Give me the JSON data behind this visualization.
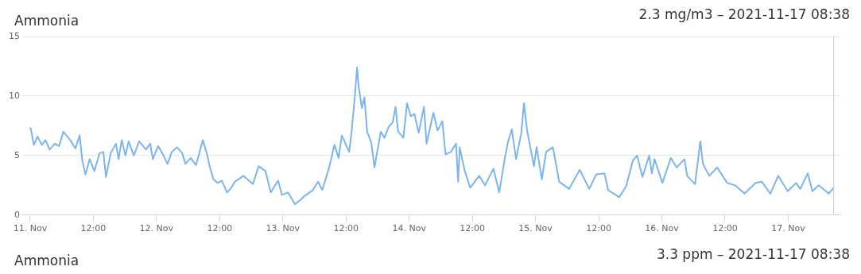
{
  "chart_data": [
    {
      "type": "line",
      "title": "Ammonia",
      "subtitle": "2.3 mg/m3 – 2021-11-17 08:38",
      "x": [
        "2021-11-11T00:00",
        "2021-11-11T00:06",
        "2021-11-11T00:42",
        "2021-11-11T01:24",
        "2021-11-11T02:12",
        "2021-11-11T02:54",
        "2021-11-11T03:42",
        "2021-11-11T04:42",
        "2021-11-11T05:30",
        "2021-11-11T06:18",
        "2021-11-11T07:36",
        "2021-11-11T08:36",
        "2021-11-11T09:24",
        "2021-11-11T09:54",
        "2021-11-11T10:30",
        "2021-11-11T11:18",
        "2021-11-11T12:12",
        "2021-11-11T13:12",
        "2021-11-11T13:54",
        "2021-11-11T14:24",
        "2021-11-11T15:18",
        "2021-11-11T16:18",
        "2021-11-11T16:48",
        "2021-11-11T17:24",
        "2021-11-11T18:06",
        "2021-11-11T18:42",
        "2021-11-11T19:42",
        "2021-11-11T20:42",
        "2021-11-11T22:00",
        "2021-11-11T22:48",
        "2021-11-11T23:18",
        "2021-11-12T00:18",
        "2021-11-12T01:06",
        "2021-11-12T02:06",
        "2021-11-12T02:54",
        "2021-11-12T03:54",
        "2021-11-12T04:54",
        "2021-11-12T05:30",
        "2021-11-12T06:30",
        "2021-11-12T07:30",
        "2021-11-12T08:00",
        "2021-11-12T08:48",
        "2021-11-12T09:36",
        "2021-11-12T10:06",
        "2021-11-12T10:48",
        "2021-11-12T11:36",
        "2021-11-12T12:24",
        "2021-11-12T13:24",
        "2021-11-12T14:12",
        "2021-11-12T14:54",
        "2021-11-12T16:30",
        "2021-11-12T18:18",
        "2021-11-12T19:24",
        "2021-11-12T20:42",
        "2021-11-12T21:42",
        "2021-11-12T23:06",
        "2021-11-12T23:48",
        "2021-11-13T01:00",
        "2021-11-13T02:18",
        "2021-11-13T03:24",
        "2021-11-13T04:06",
        "2021-11-13T05:42",
        "2021-11-13T06:42",
        "2021-11-13T07:30",
        "2021-11-13T08:48",
        "2021-11-13T09:48",
        "2021-11-13T10:36",
        "2021-11-13T11:12",
        "2021-11-13T12:36",
        "2021-11-13T13:06",
        "2021-11-13T13:42",
        "2021-11-13T14:06",
        "2021-11-13T14:24",
        "2021-11-13T15:00",
        "2021-11-13T15:30",
        "2021-11-13T16:00",
        "2021-11-13T16:48",
        "2021-11-13T17:24",
        "2021-11-13T18:36",
        "2021-11-13T19:18",
        "2021-11-13T20:06",
        "2021-11-13T20:54",
        "2021-11-13T21:24",
        "2021-11-13T21:54",
        "2021-11-13T22:54",
        "2021-11-13T23:36",
        "2021-11-14T00:18",
        "2021-11-14T01:00",
        "2021-11-14T01:48",
        "2021-11-14T02:48",
        "2021-11-14T03:18",
        "2021-11-14T04:36",
        "2021-11-14T05:24",
        "2021-11-14T06:18",
        "2021-11-14T06:54",
        "2021-11-14T07:54",
        "2021-11-14T08:54",
        "2021-11-14T09:18",
        "2021-11-14T09:36",
        "2021-11-14T10:30",
        "2021-11-14T11:36",
        "2021-11-14T13:18",
        "2021-11-14T14:24",
        "2021-11-14T16:00",
        "2021-11-14T17:06",
        "2021-11-14T18:18",
        "2021-11-14T18:48",
        "2021-11-14T19:30",
        "2021-11-14T20:18",
        "2021-11-14T21:18",
        "2021-11-14T21:48",
        "2021-11-14T22:24",
        "2021-11-14T23:42",
        "2021-11-15T00:12",
        "2021-11-15T01:12",
        "2021-11-15T02:00",
        "2021-11-15T03:18",
        "2021-11-15T04:30",
        "2021-11-15T06:24",
        "2021-11-15T08:24",
        "2021-11-15T10:12",
        "2021-11-15T11:30",
        "2021-11-15T13:06",
        "2021-11-15T13:48",
        "2021-11-15T15:54",
        "2021-11-15T17:12",
        "2021-11-15T18:30",
        "2021-11-15T19:18",
        "2021-11-15T20:18",
        "2021-11-15T21:36",
        "2021-11-15T22:06",
        "2021-11-15T22:36",
        "2021-11-16T00:06",
        "2021-11-16T01:42",
        "2021-11-16T02:48",
        "2021-11-16T04:18",
        "2021-11-16T04:48",
        "2021-11-16T06:18",
        "2021-11-16T07:18",
        "2021-11-16T07:48",
        "2021-11-16T09:00",
        "2021-11-16T10:30",
        "2021-11-16T12:24",
        "2021-11-16T13:54",
        "2021-11-16T15:42",
        "2021-11-16T17:48",
        "2021-11-16T19:00",
        "2021-11-16T20:36",
        "2021-11-16T22:06",
        "2021-11-16T23:54",
        "2021-11-17T01:30",
        "2021-11-17T02:18",
        "2021-11-17T03:42",
        "2021-11-17T04:36",
        "2021-11-17T05:48",
        "2021-11-17T07:42",
        "2021-11-17T08:38"
      ],
      "series": [
        {
          "color": "#7cb5ec",
          "values": [
            7.2,
            7.3,
            5.9,
            6.6,
            5.9,
            6.3,
            5.5,
            6.0,
            5.8,
            7.0,
            6.3,
            5.6,
            6.7,
            4.6,
            3.4,
            4.7,
            3.7,
            5.2,
            5.3,
            3.2,
            5.2,
            6.0,
            4.7,
            6.3,
            5.0,
            6.2,
            5.0,
            6.2,
            5.5,
            6.0,
            4.7,
            5.8,
            5.2,
            4.3,
            5.3,
            5.7,
            5.2,
            4.3,
            4.8,
            4.2,
            5.0,
            6.3,
            5.1,
            4.1,
            3.0,
            2.7,
            2.9,
            1.9,
            2.3,
            2.8,
            3.3,
            2.6,
            4.1,
            3.7,
            1.9,
            2.9,
            1.7,
            1.9,
            0.9,
            1.3,
            1.6,
            2.1,
            2.8,
            2.1,
            4.0,
            5.9,
            4.8,
            6.7,
            5.3,
            7.2,
            10.1,
            12.4,
            10.8,
            9.0,
            9.9,
            7.0,
            6.1,
            4.0,
            7.0,
            6.5,
            7.4,
            7.8,
            9.1,
            7.0,
            6.5,
            9.4,
            8.3,
            8.5,
            6.9,
            9.1,
            6.0,
            8.6,
            7.1,
            7.9,
            5.1,
            5.3,
            6.0,
            2.8,
            5.7,
            3.8,
            2.3,
            3.3,
            2.5,
            3.9,
            1.9,
            5.1,
            6.2,
            7.2,
            4.7,
            6.9,
            9.4,
            7.1,
            4.1,
            5.7,
            3.0,
            5.3,
            5.7,
            2.8,
            2.2,
            3.8,
            2.2,
            3.4,
            3.5,
            2.1,
            1.5,
            2.4,
            4.6,
            5.0,
            3.2,
            5.0,
            3.5,
            4.7,
            2.7,
            4.8,
            4.0,
            4.7,
            3.3,
            2.6,
            6.2,
            4.3,
            3.3,
            4.0,
            2.7,
            2.5,
            1.8,
            2.7,
            2.8,
            1.8,
            3.3,
            2.0,
            2.7,
            2.2,
            3.5,
            2.0,
            2.5,
            1.8,
            2.3
          ]
        }
      ],
      "xlim": [
        "2021-11-10T22:30",
        "2021-11-17T09:54"
      ],
      "xticks": [
        {
          "value": "2021-11-11",
          "label": "11. Nov"
        },
        {
          "value": "2021-11-11T12:00",
          "label": "12:00"
        },
        {
          "value": "2021-11-12",
          "label": "12. Nov"
        },
        {
          "value": "2021-11-12T12:00",
          "label": "12:00"
        },
        {
          "value": "2021-11-13",
          "label": "13. Nov"
        },
        {
          "value": "2021-11-13T12:00",
          "label": "12:00"
        },
        {
          "value": "2021-11-14",
          "label": "14. Nov"
        },
        {
          "value": "2021-11-14T12:00",
          "label": "12:00"
        },
        {
          "value": "2021-11-15",
          "label": "15. Nov"
        },
        {
          "value": "2021-11-15T12:00",
          "label": "12:00"
        },
        {
          "value": "2021-11-16",
          "label": "16. Nov"
        },
        {
          "value": "2021-11-16T12:00",
          "label": "12:00"
        },
        {
          "value": "2021-11-17",
          "label": "17. Nov"
        }
      ],
      "ylim": [
        0,
        15
      ],
      "yticks": [
        0,
        5,
        10,
        15
      ],
      "ref_lines": [
        {
          "axis": "x",
          "value": "2021-11-17T08:38",
          "color": "#cccccc"
        }
      ],
      "grid": "y",
      "legend": false,
      "marker": "none",
      "line_style": "solid"
    },
    {
      "type": "other",
      "title": "Ammonia",
      "subtitle": "3.3 ppm – 2021-11-17 08:38"
    }
  ]
}
